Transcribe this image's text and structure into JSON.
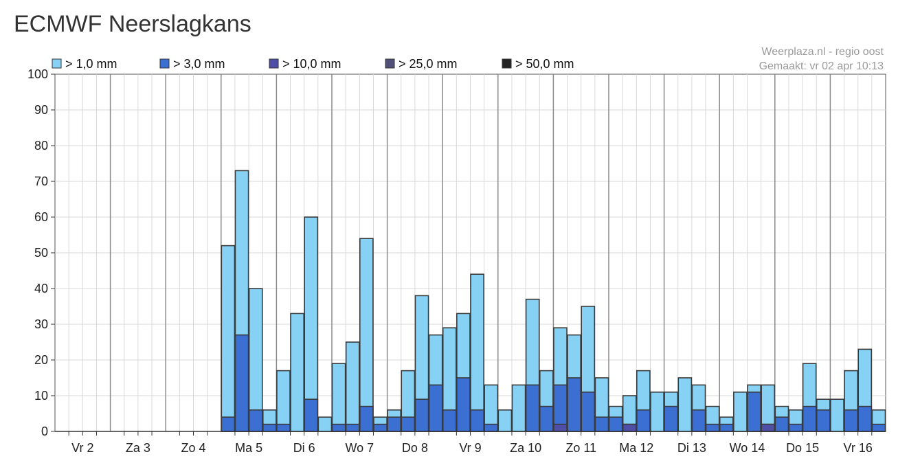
{
  "title": "ECMWF Neerslagkans",
  "credit": {
    "line1": "Weerplaza.nl - regio oost",
    "line2": "Gemaakt: vr 02 apr 10:13"
  },
  "colors": {
    "gt1": "#87d2f4",
    "gt3": "#3c6fd2",
    "gt10": "#4f4fa8",
    "gt25": "#505078",
    "gt50": "#222222",
    "bar_outline": "#3a3a3a",
    "grid": "#d8d8d8",
    "day_line": "#8a8a8a"
  },
  "chart_data": {
    "type": "bar",
    "title": "ECMWF Neerslagkans",
    "ylim": [
      0,
      100
    ],
    "yticks": [
      0,
      10,
      20,
      30,
      40,
      50,
      60,
      70,
      80,
      90,
      100
    ],
    "grid": true,
    "legend_position": "top",
    "days": [
      "Vr 2",
      "Za 3",
      "Zo 4",
      "Ma 5",
      "Di 6",
      "Wo 7",
      "Do 8",
      "Vr 9",
      "Za 10",
      "Zo 11",
      "Ma 12",
      "Di 13",
      "Wo 14",
      "Do 15",
      "Vr 16"
    ],
    "bars_per_day": 4,
    "series": [
      {
        "name": "> 1,0 mm",
        "color": "#87d2f4",
        "values": [
          0,
          0,
          0,
          0,
          0,
          0,
          0,
          0,
          0,
          0,
          0,
          0,
          52,
          73,
          40,
          6,
          17,
          33,
          60,
          4,
          19,
          25,
          54,
          4,
          6,
          17,
          38,
          27,
          29,
          33,
          44,
          13,
          6,
          13,
          37,
          17,
          29,
          27,
          35,
          15,
          7,
          10,
          17,
          11,
          11,
          15,
          13,
          7,
          4,
          11,
          13,
          13,
          7,
          6,
          19,
          9,
          9,
          17,
          23,
          6
        ]
      },
      {
        "name": "> 3,0 mm",
        "color": "#3c6fd2",
        "values": [
          0,
          0,
          0,
          0,
          0,
          0,
          0,
          0,
          0,
          0,
          0,
          0,
          4,
          27,
          6,
          2,
          2,
          0,
          9,
          0,
          2,
          2,
          7,
          2,
          4,
          4,
          9,
          13,
          6,
          15,
          6,
          2,
          0,
          0,
          13,
          7,
          13,
          15,
          11,
          4,
          4,
          2,
          6,
          0,
          7,
          0,
          6,
          2,
          2,
          0,
          11,
          2,
          4,
          2,
          7,
          6,
          0,
          6,
          7,
          2
        ]
      },
      {
        "name": "> 10,0 mm",
        "color": "#4f4fa8",
        "values": [
          0,
          0,
          0,
          0,
          0,
          0,
          0,
          0,
          0,
          0,
          0,
          0,
          0,
          0,
          0,
          0,
          0,
          0,
          0,
          0,
          0,
          0,
          0,
          0,
          0,
          0,
          0,
          0,
          0,
          0,
          0,
          0,
          0,
          0,
          0,
          0,
          2,
          0,
          0,
          0,
          0,
          2,
          0,
          0,
          0,
          0,
          0,
          0,
          0,
          0,
          0,
          2,
          0,
          0,
          0,
          0,
          0,
          0,
          0,
          0
        ]
      },
      {
        "name": "> 25,0 mm",
        "color": "#505078",
        "values": [
          0,
          0,
          0,
          0,
          0,
          0,
          0,
          0,
          0,
          0,
          0,
          0,
          0,
          0,
          0,
          0,
          0,
          0,
          0,
          0,
          0,
          0,
          0,
          0,
          0,
          0,
          0,
          0,
          0,
          0,
          0,
          0,
          0,
          0,
          0,
          0,
          0,
          0,
          0,
          0,
          0,
          0,
          0,
          0,
          0,
          0,
          0,
          0,
          0,
          0,
          0,
          0,
          0,
          0,
          0,
          0,
          0,
          0,
          0,
          0
        ]
      },
      {
        "name": "> 50,0 mm",
        "color": "#222222",
        "values": [
          0,
          0,
          0,
          0,
          0,
          0,
          0,
          0,
          0,
          0,
          0,
          0,
          0,
          0,
          0,
          0,
          0,
          0,
          0,
          0,
          0,
          0,
          0,
          0,
          0,
          0,
          0,
          0,
          0,
          0,
          0,
          0,
          0,
          0,
          0,
          0,
          0,
          0,
          0,
          0,
          0,
          0,
          0,
          0,
          0,
          0,
          0,
          0,
          0,
          0,
          0,
          0,
          0,
          0,
          0,
          0,
          0,
          0,
          0,
          0
        ]
      }
    ]
  }
}
